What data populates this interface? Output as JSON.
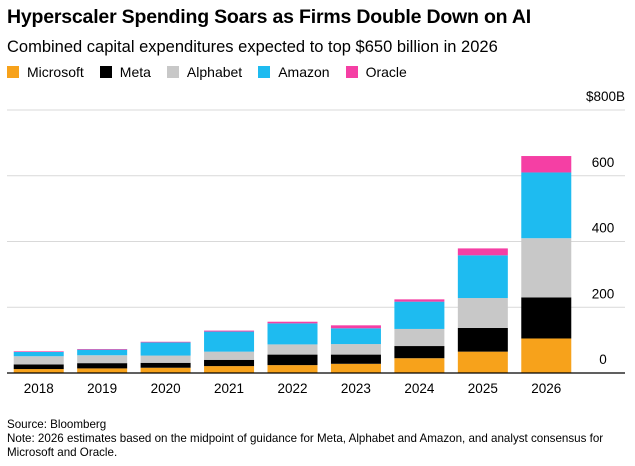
{
  "title": "Hyperscaler Spending Soars as Firms Double Down on AI",
  "subtitle": "Combined capital expenditures expected to top $650 billion in 2026",
  "footer": {
    "source": "Source: Bloomberg",
    "note": "Note: 2026 estimates based on the midpoint of guidance for Meta, Alphabet and Amazon, and analyst consensus for Microsoft and Oracle."
  },
  "colors": {
    "Microsoft": "#f7a21b",
    "Meta": "#000000",
    "Alphabet": "#c8c8c8",
    "Amazon": "#1ebbf0",
    "Oracle": "#f53fa4",
    "grid": "#d9d9d9",
    "axis": "#000000"
  },
  "chart_data": {
    "type": "bar",
    "stacked": true,
    "categories": [
      "2018",
      "2019",
      "2020",
      "2021",
      "2022",
      "2023",
      "2024",
      "2025",
      "2026"
    ],
    "series": [
      {
        "name": "Microsoft",
        "values": [
          12,
          14,
          16,
          21,
          24,
          28,
          45,
          65,
          105
        ]
      },
      {
        "name": "Meta",
        "values": [
          14,
          16,
          15,
          19,
          32,
          28,
          37,
          72,
          125
        ]
      },
      {
        "name": "Alphabet",
        "values": [
          25,
          24,
          22,
          25,
          31,
          32,
          52,
          91,
          180
        ]
      },
      {
        "name": "Amazon",
        "values": [
          13,
          17,
          40,
          61,
          64,
          48,
          83,
          130,
          200
        ]
      },
      {
        "name": "Oracle",
        "values": [
          2,
          2,
          2,
          3,
          5,
          9,
          7,
          21,
          50
        ]
      }
    ],
    "yticks": [
      {
        "value": 0,
        "label": "0"
      },
      {
        "value": 200,
        "label": "200"
      },
      {
        "value": 400,
        "label": "400"
      },
      {
        "value": 600,
        "label": "600"
      },
      {
        "value": 800,
        "label": "$800B"
      }
    ],
    "ylim": [
      0,
      800
    ],
    "grid": true,
    "legend_position": "top-left",
    "xlabel": "",
    "ylabel": ""
  }
}
